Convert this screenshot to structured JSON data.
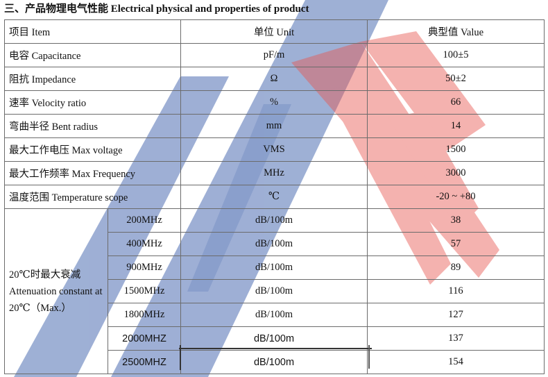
{
  "heading": "三、产品物理电气性能 Electrical physical and properties of product",
  "header": {
    "item": "项目 Item",
    "unit": "单位 Unit",
    "value": "典型值 Value"
  },
  "rows": [
    {
      "item": "电容 Capacitance",
      "unit": "pF/m",
      "value": "100±5"
    },
    {
      "item": "阻抗  Impedance",
      "unit": "Ω",
      "value": "50±2"
    },
    {
      "item": "速率 Velocity ratio",
      "unit": "%",
      "value": "66"
    },
    {
      "item": "弯曲半径  Bent radius",
      "unit": "mm",
      "value": "14"
    },
    {
      "item": "最大工作电压  Max voltage",
      "unit": "VMS",
      "value": "1500"
    },
    {
      "item": "最大工作频率  Max Frequency",
      "unit": "MHz",
      "value": "3000"
    },
    {
      "item": "温度范围  Temperature scope",
      "unit": "℃",
      "value": "-20 ~ +80"
    }
  ],
  "attenuation": {
    "label_line1": "20℃时最大衰减",
    "label_line2": "Attenuation constant at",
    "label_line3": "20℃（Max.）",
    "rows": [
      {
        "freq": "200MHz",
        "unit": "dB/100m",
        "value": "38"
      },
      {
        "freq": "400MHz",
        "unit": "dB/100m",
        "value": "57"
      },
      {
        "freq": "900MHz",
        "unit": "dB/100m",
        "value": "89"
      },
      {
        "freq": "1500MHz",
        "unit": "dB/100m",
        "value": "116"
      },
      {
        "freq": "1800MHz",
        "unit": "dB/100m",
        "value": "127"
      },
      {
        "freq": "2000MHZ",
        "unit": "dB/100m",
        "value": "137"
      },
      {
        "freq": "2500MHZ",
        "unit": "dB/100m",
        "value": "154"
      }
    ]
  },
  "colors": {
    "watermark_blue": "#4f6fb3",
    "watermark_red": "#e8564f",
    "border": "#6b6b6b"
  }
}
